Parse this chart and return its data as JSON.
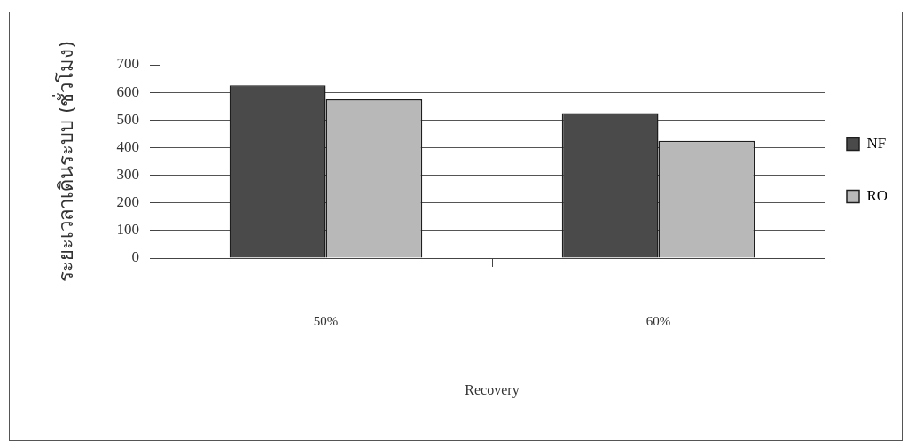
{
  "chart_data": {
    "type": "bar",
    "categories": [
      "50%",
      "60%"
    ],
    "series": [
      {
        "name": "NF",
        "color": "#4a4a4a",
        "values": [
          625,
          525
        ]
      },
      {
        "name": "RO",
        "color": "#b8b8b8",
        "values": [
          575,
          425
        ]
      }
    ],
    "xlabel": "Recovery",
    "ylabel": "ระยะเวลาเดินระบบ (ชั่วโมง)",
    "ylim": [
      0,
      700
    ],
    "yticks": [
      0,
      100,
      200,
      300,
      400,
      500,
      600,
      700
    ],
    "grid": "y",
    "legend": "right"
  }
}
